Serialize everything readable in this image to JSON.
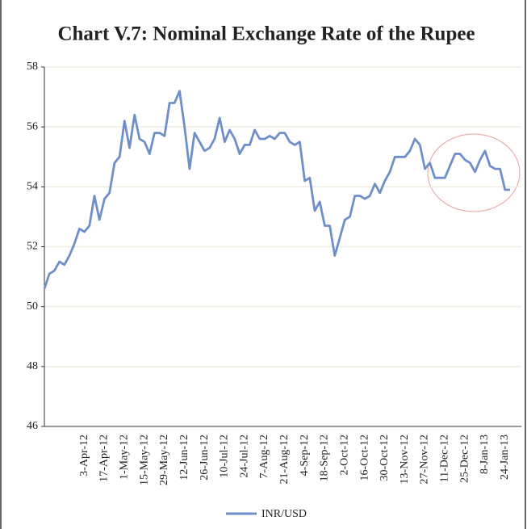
{
  "chart_data": {
    "type": "line",
    "title": "Chart V.7: Nominal Exchange Rate of the Rupee",
    "categories": [
      null,
      null,
      null,
      null,
      null,
      null,
      null,
      null,
      "3-Apr-12",
      null,
      null,
      null,
      "17-Apr-12",
      null,
      null,
      null,
      "1-May-12",
      null,
      null,
      null,
      "15-May-12",
      null,
      null,
      null,
      "29-May-12",
      null,
      null,
      null,
      "12-Jun-12",
      null,
      null,
      null,
      "26-Jun-12",
      null,
      null,
      null,
      "10-Jul-12",
      null,
      null,
      null,
      "24-Jul-12",
      null,
      null,
      null,
      "7-Aug-12",
      null,
      null,
      null,
      "21-Aug-12",
      null,
      null,
      null,
      "4-Sep-12",
      null,
      null,
      null,
      "18-Sep-12",
      null,
      null,
      null,
      "2-Oct-12",
      null,
      null,
      null,
      "16-Oct-12",
      null,
      null,
      null,
      "30-Oct-12",
      null,
      null,
      null,
      "13-Nov-12",
      null,
      null,
      null,
      "27-Nov-12",
      null,
      null,
      null,
      "11-Dec-12",
      null,
      null,
      null,
      "25-Dec-12",
      null,
      null,
      null,
      "8-Jan-13",
      null,
      null,
      null,
      "24-Jan-13",
      null
    ],
    "series": [
      {
        "name": "INR/USD",
        "color": "#6f8fc8",
        "values": [
          50.6,
          51.1,
          51.2,
          51.5,
          51.4,
          51.7,
          52.1,
          52.6,
          52.5,
          52.7,
          53.7,
          52.9,
          53.6,
          53.8,
          54.8,
          55.0,
          56.2,
          55.3,
          56.4,
          55.6,
          55.5,
          55.1,
          55.8,
          55.8,
          55.7,
          56.8,
          56.8,
          57.2,
          56.0,
          54.6,
          55.8,
          55.5,
          55.2,
          55.3,
          55.6,
          56.3,
          55.5,
          55.9,
          55.6,
          55.1,
          55.4,
          55.4,
          55.9,
          55.6,
          55.6,
          55.7,
          55.6,
          55.8,
          55.8,
          55.5,
          55.4,
          55.5,
          54.2,
          54.3,
          53.2,
          53.5,
          52.7,
          52.7,
          51.7,
          52.3,
          52.9,
          53.0,
          53.7,
          53.7,
          53.6,
          53.7,
          54.1,
          53.8,
          54.2,
          54.5,
          55.0,
          55.0,
          55.0,
          55.2,
          55.6,
          55.4,
          54.6,
          54.8,
          54.3,
          54.3,
          54.3,
          54.7,
          55.1,
          55.1,
          54.9,
          54.8,
          54.5,
          54.9,
          55.2,
          54.7,
          54.6,
          54.6,
          53.9,
          53.9
        ]
      }
    ],
    "ylim": [
      46,
      58
    ],
    "yticks": [
      46,
      48,
      50,
      52,
      54,
      56,
      58
    ],
    "grid": true
  }
}
